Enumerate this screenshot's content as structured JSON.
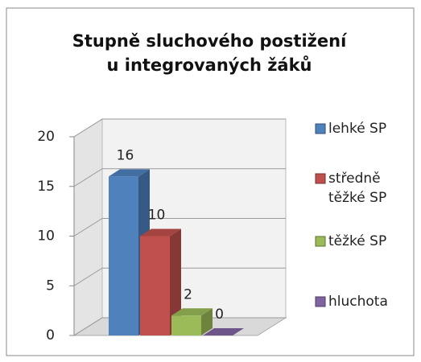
{
  "chart_data": {
    "type": "bar",
    "title": "Stupně sluchového postižení u integrovaných žáků",
    "categories": [
      null
    ],
    "series": [
      {
        "name": "lehké SP",
        "color": "#4f81bd",
        "values": [
          16
        ]
      },
      {
        "name": "středně těžké SP",
        "color": "#c0504d",
        "values": [
          10
        ]
      },
      {
        "name": "těžké SP",
        "color": "#9bbb59",
        "values": [
          2
        ]
      },
      {
        "name": "hluchota",
        "color": "#8064a2",
        "values": [
          0
        ]
      }
    ],
    "ylim": [
      0,
      20
    ],
    "yticks": [
      0,
      5,
      10,
      15,
      20
    ],
    "grid": true,
    "legend": "right"
  }
}
